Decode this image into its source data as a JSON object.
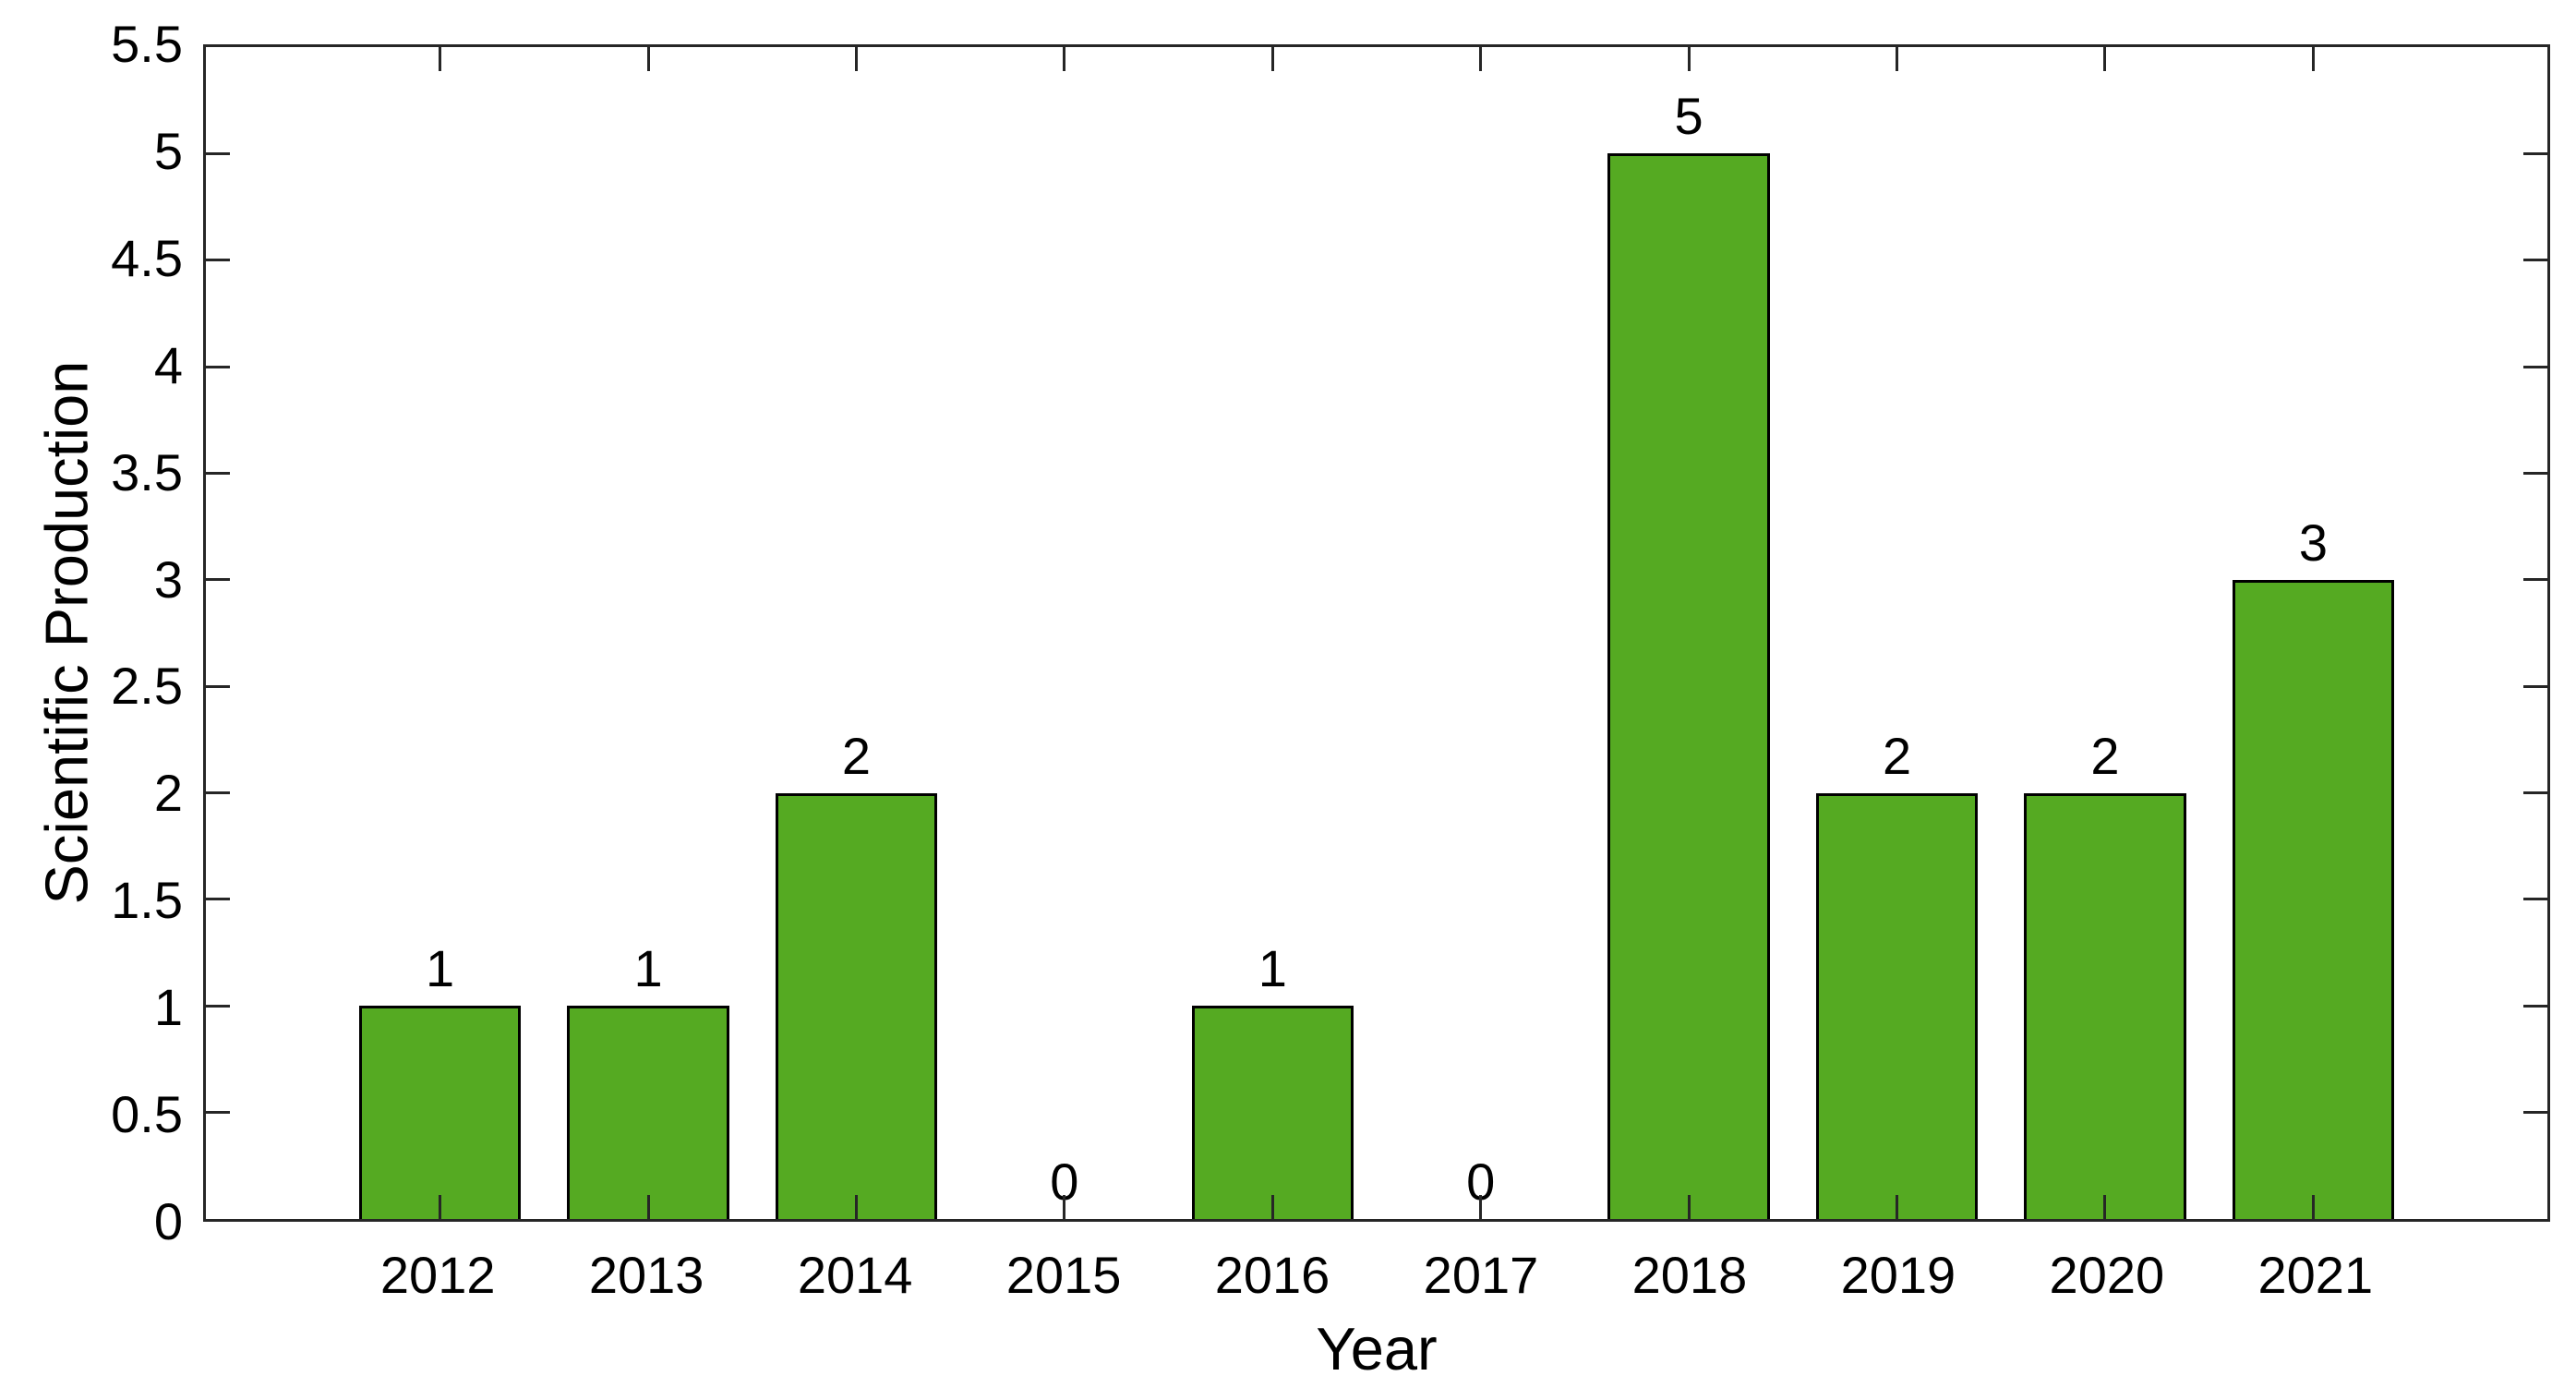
{
  "figure": {
    "background_color": "#ffffff",
    "axis_color": "#262626",
    "text_color": "#000000"
  },
  "chart_data": {
    "type": "bar",
    "title": "",
    "xlabel": "Year",
    "ylabel": "Scientific Production",
    "categories": [
      "2012",
      "2013",
      "2014",
      "2015",
      "2016",
      "2017",
      "2018",
      "2019",
      "2020",
      "2021"
    ],
    "values": [
      1,
      1,
      2,
      0,
      1,
      0,
      5,
      2,
      2,
      3
    ],
    "bar_labels": [
      "1",
      "1",
      "2",
      "0",
      "1",
      "0",
      "5",
      "2",
      "2",
      "3"
    ],
    "ylim": [
      0,
      5.5
    ],
    "ytick_values": [
      0,
      0.5,
      1,
      1.5,
      2,
      2.5,
      3,
      3.5,
      4,
      4.5,
      5,
      5.5
    ],
    "ytick_labels": [
      "0",
      "0.5",
      "1",
      "1.5",
      "2",
      "2.5",
      "3",
      "3.5",
      "4",
      "4.5",
      "5",
      "5.5"
    ],
    "grid": false,
    "legend_position": "none",
    "bar_color": "#55AA22",
    "bar_edge_color": "#000000",
    "layout_hints": {
      "box": true,
      "tick_direction": "in",
      "ticks_mirrored_all_sides": true
    }
  }
}
